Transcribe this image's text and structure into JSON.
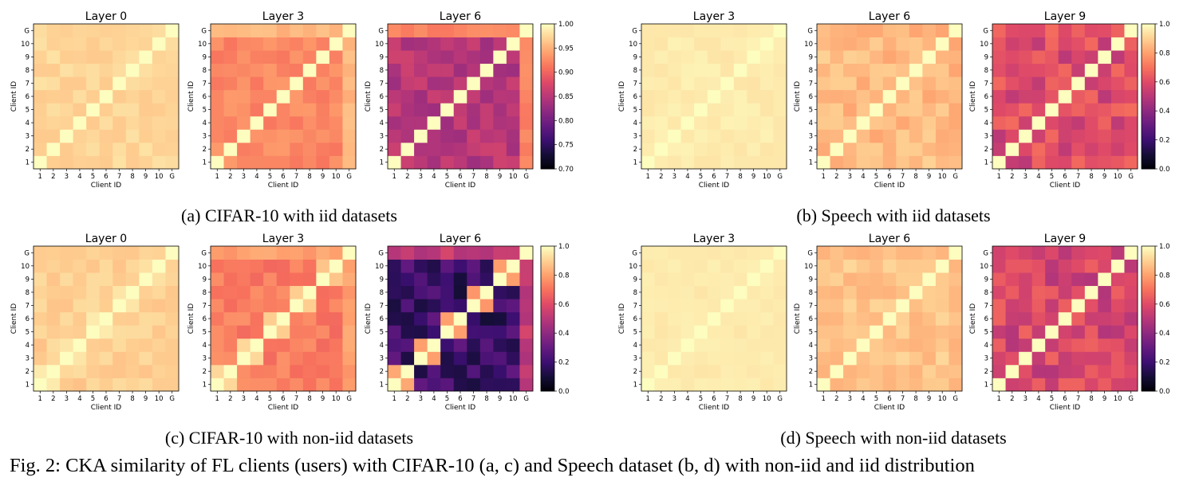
{
  "figure": {
    "caption": "Fig. 2: CKA similarity of FL clients (users) with CIFAR-10 (a, c) and Speech dataset (b, d) with non-iid and iid distribution"
  },
  "chart_data": [
    {
      "panel": "(a) CIFAR-10 with iid datasets",
      "type": "heatmap",
      "categories": [
        "1",
        "2",
        "3",
        "4",
        "5",
        "6",
        "7",
        "8",
        "9",
        "10",
        "G"
      ],
      "xlabel": "Client ID",
      "ylabel": "Client ID",
      "colormap": "magma",
      "shared_colorbar": {
        "vmin": 0.7,
        "vmax": 1.0,
        "ticks": [
          "0.70",
          "0.75",
          "0.80",
          "0.85",
          "0.90",
          "0.95",
          "1.00"
        ]
      },
      "subplots": [
        {
          "title": "Layer 0",
          "offdiag_mean": 0.975,
          "offdiag_jitter": 0.008,
          "g_value": 0.975
        },
        {
          "title": "Layer 3",
          "offdiag_mean": 0.925,
          "offdiag_jitter": 0.012,
          "g_value": 0.955
        },
        {
          "title": "Layer 6",
          "offdiag_mean": 0.85,
          "offdiag_jitter": 0.018,
          "g_value": 0.925
        }
      ]
    },
    {
      "panel": "(b) Speech with iid datasets",
      "type": "heatmap",
      "categories": [
        "1",
        "2",
        "3",
        "4",
        "5",
        "6",
        "7",
        "8",
        "9",
        "10",
        "G"
      ],
      "xlabel": "Client ID",
      "ylabel": "Client ID",
      "colormap": "magma",
      "shared_colorbar": {
        "vmin": 0.0,
        "vmax": 1.0,
        "ticks": [
          "0.0",
          "0.2",
          "0.4",
          "0.6",
          "0.8",
          "1.0"
        ]
      },
      "subplots": [
        {
          "title": "Layer 3",
          "offdiag_mean": 0.96,
          "offdiag_jitter": 0.015,
          "g_value": 0.96
        },
        {
          "title": "Layer 6",
          "offdiag_mean": 0.86,
          "offdiag_jitter": 0.05,
          "g_value": 0.84
        },
        {
          "title": "Layer 9",
          "offdiag_mean": 0.6,
          "offdiag_jitter": 0.09,
          "g_value": 0.64
        }
      ]
    },
    {
      "panel": "(c) CIFAR-10 with non-iid datasets",
      "type": "heatmap",
      "categories": [
        "1",
        "2",
        "3",
        "4",
        "5",
        "6",
        "7",
        "8",
        "9",
        "10",
        "G"
      ],
      "xlabel": "Client ID",
      "ylabel": "Client ID",
      "colormap": "magma",
      "shared_colorbar": {
        "vmin": 0.0,
        "vmax": 1.0,
        "ticks": [
          "0.0",
          "0.2",
          "0.4",
          "0.6",
          "0.8",
          "1.0"
        ]
      },
      "subplots": [
        {
          "title": "Layer 0",
          "offdiag_mean": 0.9,
          "offdiag_jitter": 0.03,
          "g_value": 0.9,
          "pairs": [
            [
              1,
              2,
              0.96
            ],
            [
              3,
              4,
              0.95
            ],
            [
              5,
              6,
              0.96
            ],
            [
              7,
              8,
              0.95
            ],
            [
              9,
              10,
              0.94
            ]
          ]
        },
        {
          "title": "Layer 3",
          "offdiag_mean": 0.72,
          "offdiag_jitter": 0.05,
          "g_value": 0.8,
          "pairs": [
            [
              1,
              2,
              0.92
            ],
            [
              3,
              4,
              0.92
            ],
            [
              5,
              6,
              0.9
            ],
            [
              7,
              8,
              0.9
            ],
            [
              9,
              10,
              0.88
            ]
          ]
        },
        {
          "title": "Layer 6",
          "offdiag_mean": 0.2,
          "offdiag_jitter": 0.1,
          "g_value": 0.52,
          "pairs": [
            [
              1,
              2,
              0.82
            ],
            [
              3,
              4,
              0.8
            ],
            [
              5,
              6,
              0.8
            ],
            [
              7,
              8,
              0.78
            ],
            [
              9,
              10,
              0.8
            ]
          ]
        }
      ]
    },
    {
      "panel": "(d) Speech with non-iid datasets",
      "type": "heatmap",
      "categories": [
        "1",
        "2",
        "3",
        "4",
        "5",
        "6",
        "7",
        "8",
        "9",
        "10",
        "G"
      ],
      "xlabel": "Client ID",
      "ylabel": "Client ID",
      "colormap": "magma",
      "shared_colorbar": {
        "vmin": 0.0,
        "vmax": 1.0,
        "ticks": [
          "0.0",
          "0.2",
          "0.4",
          "0.6",
          "0.8",
          "1.0"
        ]
      },
      "subplots": [
        {
          "title": "Layer 3",
          "offdiag_mean": 0.96,
          "offdiag_jitter": 0.012,
          "g_value": 0.96
        },
        {
          "title": "Layer 6",
          "offdiag_mean": 0.88,
          "offdiag_jitter": 0.04,
          "g_value": 0.86
        },
        {
          "title": "Layer 9",
          "offdiag_mean": 0.58,
          "offdiag_jitter": 0.09,
          "g_value": 0.55
        }
      ]
    }
  ]
}
